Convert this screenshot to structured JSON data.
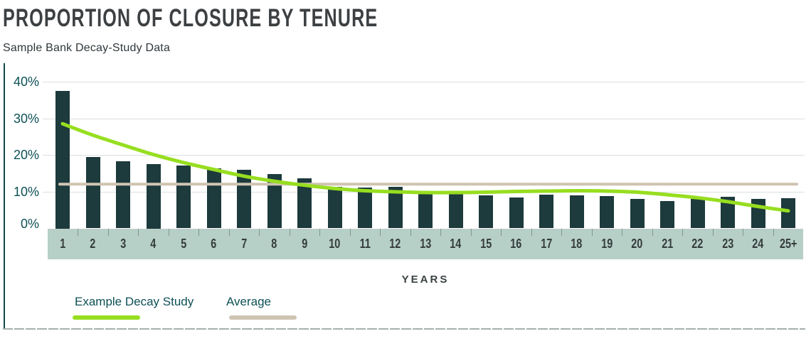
{
  "header": {
    "title": "PROPORTION OF CLOSURE BY TENURE",
    "subtitle": "Sample Bank Decay-Study Data"
  },
  "chart_data": {
    "type": "bar",
    "title": "PROPORTION OF CLOSURE BY TENURE",
    "subtitle": "Sample Bank Decay-Study Data",
    "xlabel": "YEARS",
    "ylabel": "",
    "ylim": [
      0,
      40
    ],
    "y_ticks": [
      {
        "value": 40,
        "label": "40%"
      },
      {
        "value": 30,
        "label": "30%"
      },
      {
        "value": 20,
        "label": "20%"
      },
      {
        "value": 10,
        "label": "10%"
      },
      {
        "value": 0,
        "label": "0%"
      }
    ],
    "grid": "horizontal",
    "legend_position": "bottom-left",
    "categories": [
      "1",
      "2",
      "3",
      "4",
      "5",
      "6",
      "7",
      "8",
      "9",
      "10",
      "11",
      "12",
      "13",
      "14",
      "15",
      "16",
      "17",
      "18",
      "19",
      "20",
      "21",
      "22",
      "23",
      "24",
      "25+"
    ],
    "series": [
      {
        "name": "Proportion of Closure",
        "type": "bar",
        "color": "#1d3a3c",
        "values": [
          37.5,
          19.4,
          18.3,
          17.5,
          17.0,
          16.4,
          15.9,
          14.8,
          13.5,
          11.3,
          11.0,
          11.3,
          9.5,
          9.3,
          9.0,
          8.4,
          9.2,
          9.0,
          8.7,
          7.9,
          7.4,
          8.0,
          8.6,
          8.0,
          8.1
        ]
      },
      {
        "name": "Example Decay Study",
        "type": "line",
        "color": "#97de20",
        "values": [
          28.5,
          25.4,
          22.7,
          20.1,
          17.9,
          16.0,
          14.2,
          12.8,
          11.7,
          10.8,
          10.2,
          9.9,
          9.7,
          9.7,
          9.8,
          10.0,
          10.1,
          10.2,
          10.1,
          9.8,
          9.1,
          8.3,
          7.2,
          5.9,
          4.7
        ]
      },
      {
        "name": "Average",
        "type": "hline",
        "color": "#cfc4b2",
        "value": 12
      }
    ]
  },
  "legend": [
    {
      "label": "Example Decay Study",
      "color": "#97de20"
    },
    {
      "label": "Average",
      "color": "#cfc4b2"
    }
  ],
  "colors": {
    "bar": "#1d3a3c",
    "decay_line": "#97de20",
    "average_line": "#cfc4b2",
    "axis_band": "#b6cfc7",
    "grid": "#d9e0df",
    "axis_line": "#12484d",
    "tick_label": "#0d5055",
    "title": "#3d4042"
  }
}
